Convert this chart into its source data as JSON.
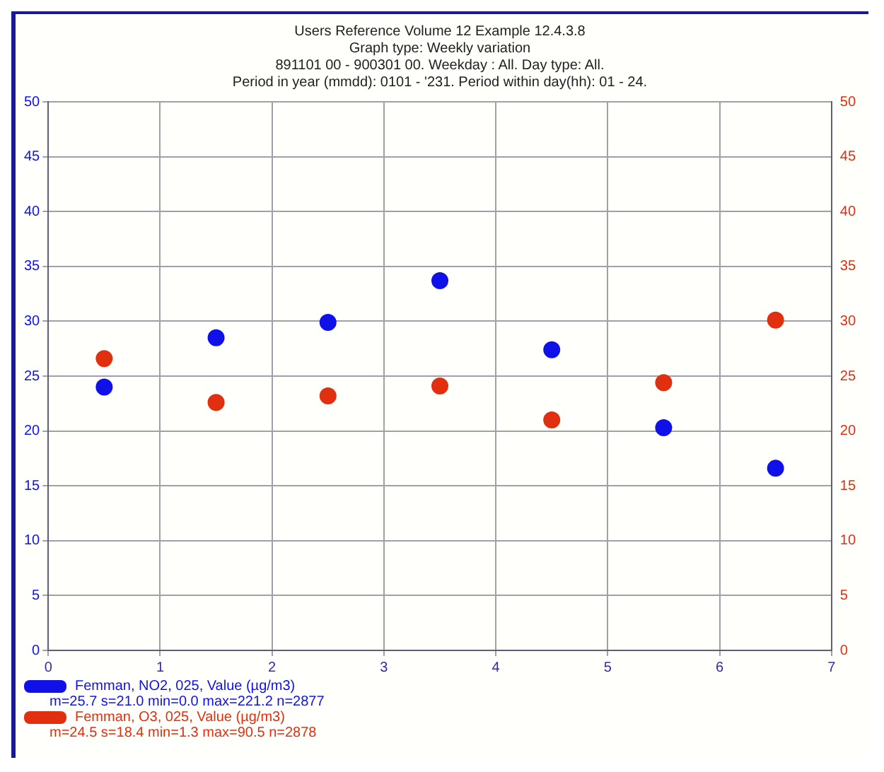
{
  "chart_data": {
    "type": "scatter",
    "title": "Users Reference Volume 12 Example 12.4.3.8",
    "subtitle": "Graph type: Weekly variation\n891101 00 - 900301 00. Weekday : All. Day type: All.\nPeriod in year (mmdd): 0101 - '231. Period within day(hh): 01 - 24.",
    "x": [
      0.5,
      1.5,
      2.5,
      3.5,
      4.5,
      5.5,
      6.5
    ],
    "series": [
      {
        "name": "Femman, NO2, 025, Value (µg/m3)",
        "color": "#1010e8",
        "values": [
          24.0,
          28.5,
          29.9,
          33.7,
          27.4,
          20.3,
          16.6
        ]
      },
      {
        "name": "Femman, O3, 025, Value (µg/m3)",
        "color": "#e03010",
        "axis": "y2",
        "values": [
          26.6,
          22.6,
          23.2,
          24.1,
          21.0,
          24.4,
          30.1
        ]
      }
    ],
    "annotations": [
      "m=25.7 s=21.0 min=0.0 max=221.2 n=2877",
      "m=24.5 s=18.4 min=1.3 max=90.5 n=2878"
    ],
    "xlim": [
      0,
      7
    ],
    "xticks": [
      0,
      1,
      2,
      3,
      4,
      5,
      6,
      7
    ],
    "ylim": [
      0,
      50
    ],
    "yticks": [
      0,
      5,
      10,
      15,
      20,
      25,
      30,
      35,
      40,
      45,
      50
    ],
    "y2lim": [
      0,
      50
    ],
    "y2ticks": [
      0,
      5,
      10,
      15,
      20,
      25,
      30,
      35,
      40,
      45,
      50
    ],
    "grid": true,
    "legend": "bottom left",
    "marker": "circle"
  }
}
